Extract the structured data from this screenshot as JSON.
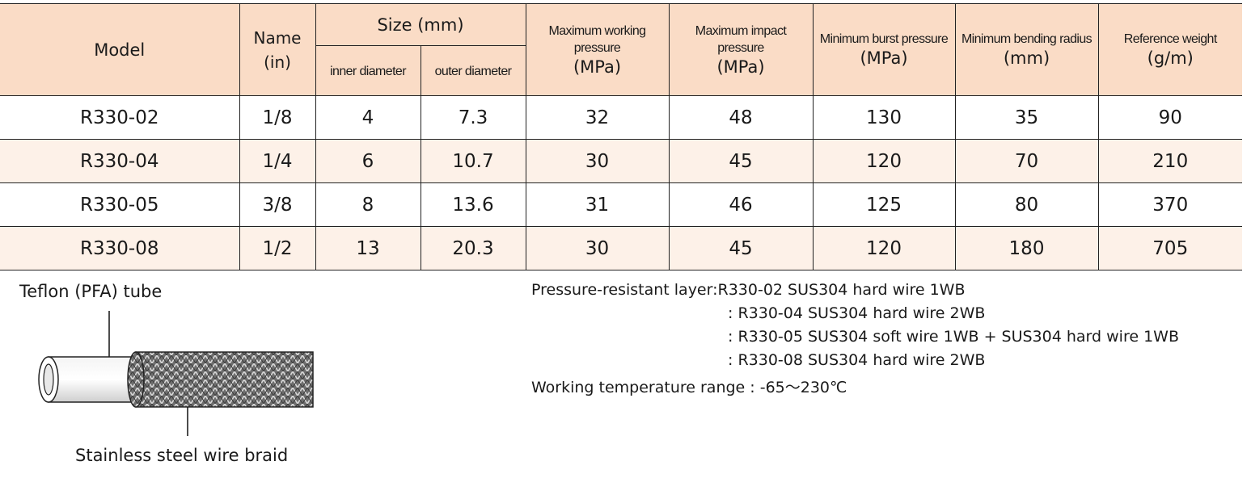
{
  "table": {
    "headers": {
      "model": "Model",
      "name": "Name",
      "name_unit": "(in)",
      "size": "Size (mm)",
      "inner_diameter": "inner diameter",
      "outer_diameter": "outer diameter",
      "max_working_pressure": [
        "Maximum working",
        "pressure"
      ],
      "max_working_pressure_unit": "(MPa)",
      "max_impact_pressure": [
        "Maximum impact",
        "pressure"
      ],
      "max_impact_pressure_unit": "(MPa)",
      "min_burst_pressure": "Minimum burst pressure",
      "min_burst_pressure_unit": "(MPa)",
      "min_bending_radius": "Minimum bending radius",
      "min_bending_radius_unit": "(mm)",
      "reference_weight": "Reference weight",
      "reference_weight_unit": "(g/m)"
    },
    "rows": [
      [
        "R330-02",
        "1/8",
        "4",
        "7.3",
        "32",
        "48",
        "130",
        "35",
        "90"
      ],
      [
        "R330-04",
        "1/4",
        "6",
        "10.7",
        "30",
        "45",
        "120",
        "70",
        "210"
      ],
      [
        "R330-05",
        "3/8",
        "8",
        "13.6",
        "31",
        "46",
        "125",
        "80",
        "370"
      ],
      [
        "R330-08",
        "1/2",
        "13",
        "20.3",
        "30",
        "45",
        "120",
        "180",
        "705"
      ]
    ]
  },
  "diagram": {
    "tube_label": "Teflon (PFA) tube",
    "braid_label": "Stainless steel wire braid",
    "tube_color": "#e6e6e6",
    "braid_color": "#7a7a7a"
  },
  "notes": {
    "layer_label": "Pressure-resistant layer:",
    "layer_lines": [
      "R330-02 SUS304 hard wire 1WB",
      ": R330-04 SUS304 hard wire 2WB",
      ": R330-05 SUS304 soft wire 1WB + SUS304 hard wire 1WB",
      ": R330-08 SUS304 hard wire 2WB"
    ],
    "temperature": "Working temperature range : -65～230℃"
  },
  "colors": {
    "header_bg": "#fadcc6",
    "alt_row_bg": "#fdf1e8"
  }
}
